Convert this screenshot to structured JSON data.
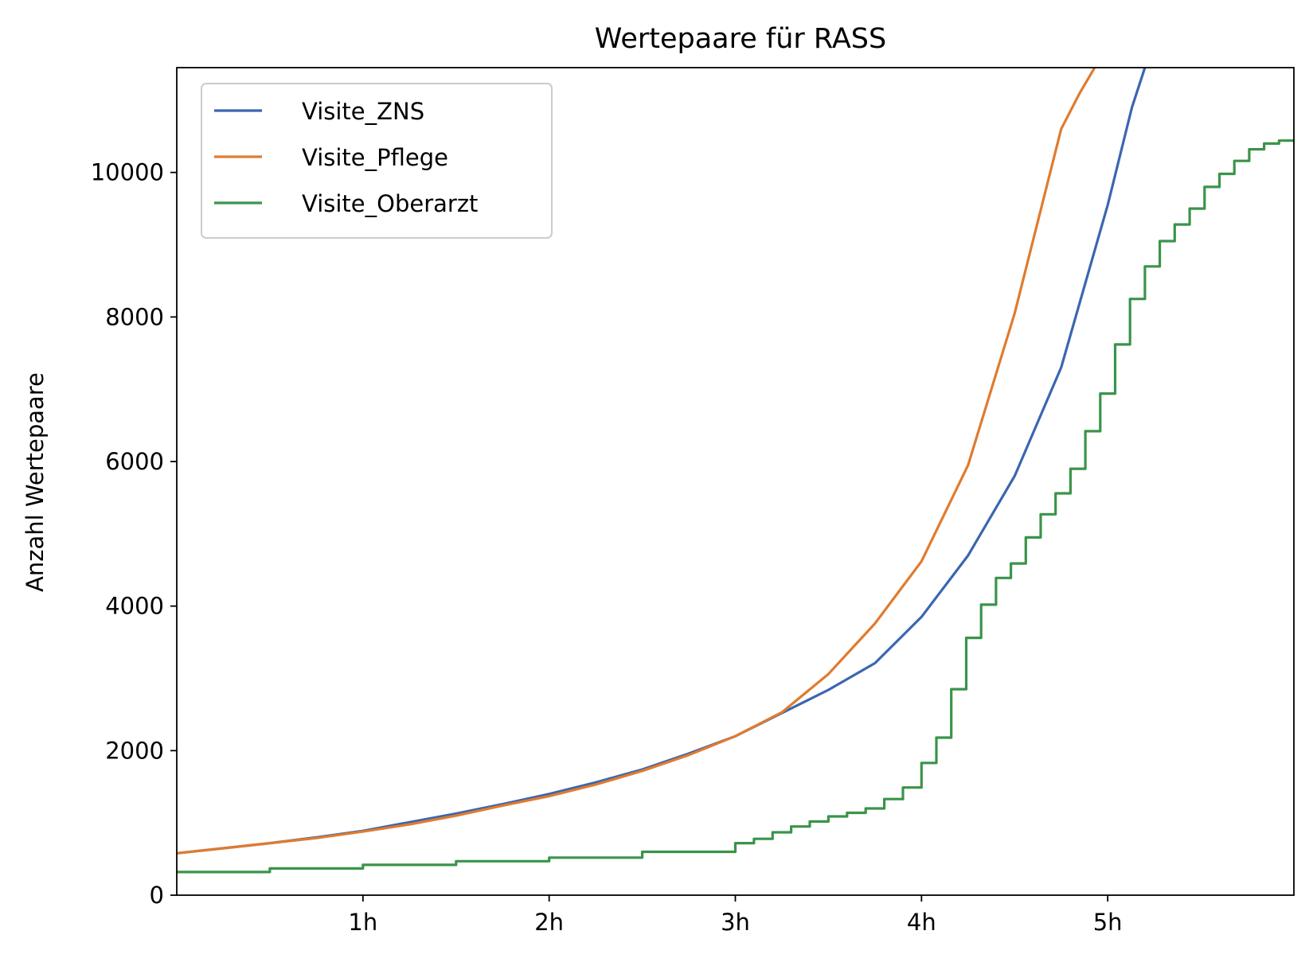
{
  "chart_data": {
    "type": "line",
    "title": "Wertepaare für RASS",
    "xlabel": "",
    "ylabel": "Anzahl Wertepaare",
    "xlim": [
      0,
      6.0
    ],
    "ylim": [
      0,
      11450
    ],
    "x_unit": "h",
    "x_ticks": [
      {
        "value": 1,
        "label": "1h"
      },
      {
        "value": 2,
        "label": "2h"
      },
      {
        "value": 3,
        "label": "3h"
      },
      {
        "value": 4,
        "label": "4h"
      },
      {
        "value": 5,
        "label": "5h"
      }
    ],
    "y_ticks": [
      {
        "value": 0,
        "label": "0"
      },
      {
        "value": 2000,
        "label": "2000"
      },
      {
        "value": 4000,
        "label": "4000"
      },
      {
        "value": 6000,
        "label": "6000"
      },
      {
        "value": 8000,
        "label": "8000"
      },
      {
        "value": 10000,
        "label": "10000"
      }
    ],
    "grid": false,
    "legend_position": "upper-left",
    "series": [
      {
        "name": "Visite_ZNS",
        "color": "#3b66b0",
        "style": "line",
        "x": [
          0,
          0.25,
          0.5,
          0.75,
          1.0,
          1.25,
          1.5,
          1.75,
          2.0,
          2.25,
          2.5,
          2.75,
          3.0,
          3.25,
          3.5,
          3.75,
          4.0,
          4.25,
          4.5,
          4.75,
          5.0,
          5.13,
          5.2
        ],
        "y": [
          580,
          650,
          720,
          800,
          890,
          1010,
          1130,
          1260,
          1400,
          1560,
          1740,
          1960,
          2200,
          2520,
          2840,
          3210,
          3850,
          4700,
          5800,
          7300,
          9550,
          10900,
          11450
        ]
      },
      {
        "name": "Visite_Pflege",
        "color": "#e07b2f",
        "style": "line",
        "x": [
          0,
          0.25,
          0.5,
          0.75,
          1.0,
          1.25,
          1.5,
          1.75,
          2.0,
          2.25,
          2.5,
          2.75,
          3.0,
          3.25,
          3.5,
          3.75,
          4.0,
          4.25,
          4.5,
          4.75,
          4.85,
          4.93
        ],
        "y": [
          580,
          650,
          720,
          790,
          880,
          980,
          1100,
          1240,
          1370,
          1530,
          1720,
          1940,
          2200,
          2530,
          3060,
          3760,
          4620,
          5950,
          8050,
          10600,
          11100,
          11450
        ]
      },
      {
        "name": "Visite_Oberarzt",
        "color": "#3a9449",
        "style": "step",
        "x": [
          0,
          0.5,
          1.0,
          1.5,
          2.0,
          2.5,
          3.0,
          3.1,
          3.2,
          3.3,
          3.4,
          3.5,
          3.6,
          3.7,
          3.8,
          3.9,
          4.0,
          4.08,
          4.16,
          4.24,
          4.32,
          4.4,
          4.48,
          4.56,
          4.64,
          4.72,
          4.8,
          4.88,
          4.96,
          5.04,
          5.12,
          5.2,
          5.28,
          5.36,
          5.44,
          5.52,
          5.6,
          5.68,
          5.76,
          5.84,
          5.92,
          6.0
        ],
        "y": [
          320,
          370,
          420,
          470,
          520,
          600,
          720,
          780,
          870,
          950,
          1020,
          1090,
          1140,
          1200,
          1330,
          1490,
          1830,
          2180,
          2850,
          3560,
          4020,
          4390,
          4590,
          4950,
          5270,
          5560,
          5900,
          6420,
          6940,
          7620,
          8250,
          8700,
          9050,
          9280,
          9500,
          9800,
          9980,
          10160,
          10320,
          10400,
          10440,
          10440
        ]
      }
    ]
  }
}
